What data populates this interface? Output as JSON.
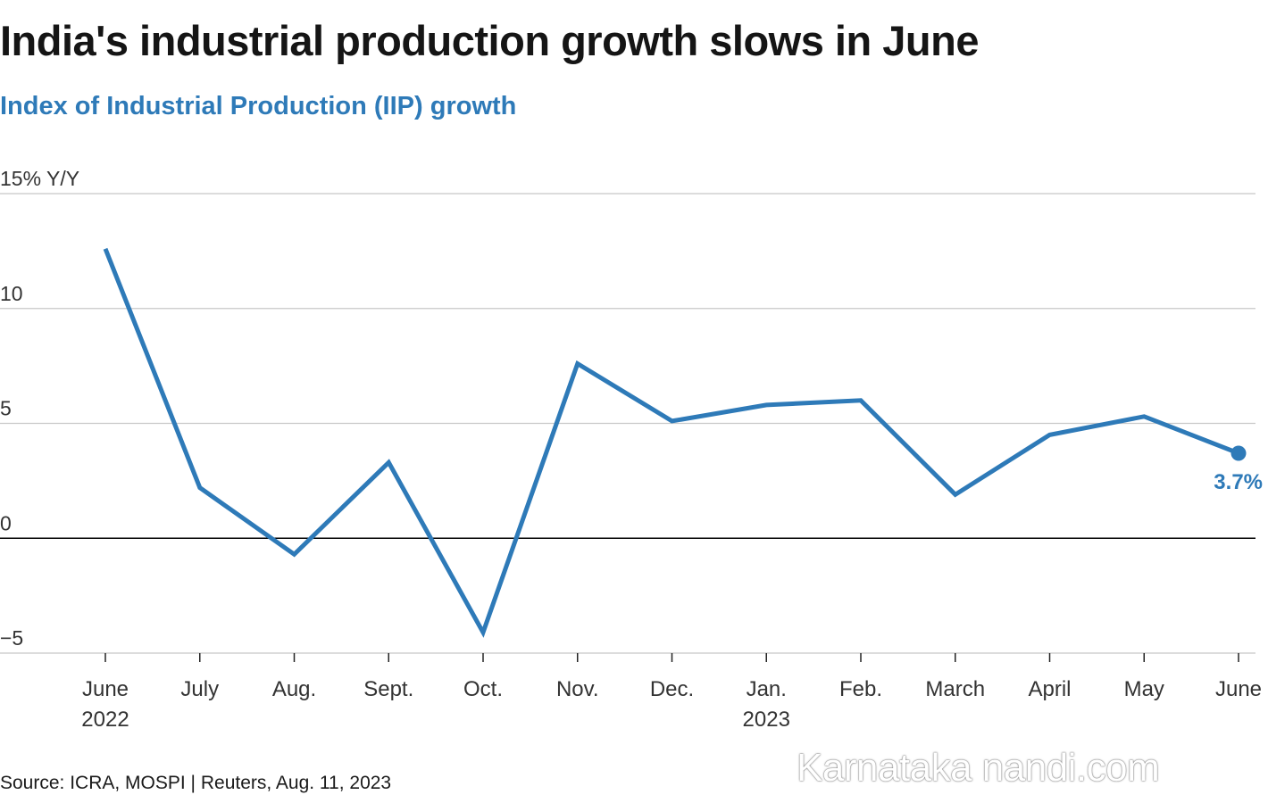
{
  "header": {
    "title": "India's industrial production growth slows in June",
    "subtitle": "Index of Industrial Production (IIP) growth"
  },
  "footer": {
    "source": "Source: ICRA, MOSPI | Reuters, Aug. 11, 2023",
    "watermark": "Karnataka nandi.com"
  },
  "colors": {
    "series": "#2e7ab8",
    "grid": "#c8c8c8",
    "zero_line": "#000000",
    "text": "#222222"
  },
  "chart_data": {
    "type": "line",
    "title": "India's industrial production growth slows in June",
    "subtitle": "Index of Industrial Production (IIP) growth",
    "ylabel": "% Y/Y",
    "ylim": [
      -5,
      15
    ],
    "yticks": [
      -5,
      0,
      5,
      10,
      15
    ],
    "ytick_labels": [
      "−5",
      "0",
      "5",
      "10",
      "15% Y/Y"
    ],
    "grid": true,
    "categories": [
      "June",
      "July",
      "Aug.",
      "Sept.",
      "Oct.",
      "Nov.",
      "Dec.",
      "Jan.",
      "Feb.",
      "March",
      "April",
      "May",
      "June"
    ],
    "year_labels": [
      "2022",
      "",
      "",
      "",
      "",
      "",
      "",
      "2023",
      "",
      "",
      "",
      "",
      ""
    ],
    "series": [
      {
        "name": "IIP growth",
        "values": [
          12.6,
          2.2,
          -0.7,
          3.3,
          -4.1,
          7.6,
          5.1,
          5.8,
          6.0,
          1.9,
          4.5,
          5.3,
          3.7
        ]
      }
    ],
    "annotation": {
      "text": "3.7%",
      "index": 12
    }
  }
}
